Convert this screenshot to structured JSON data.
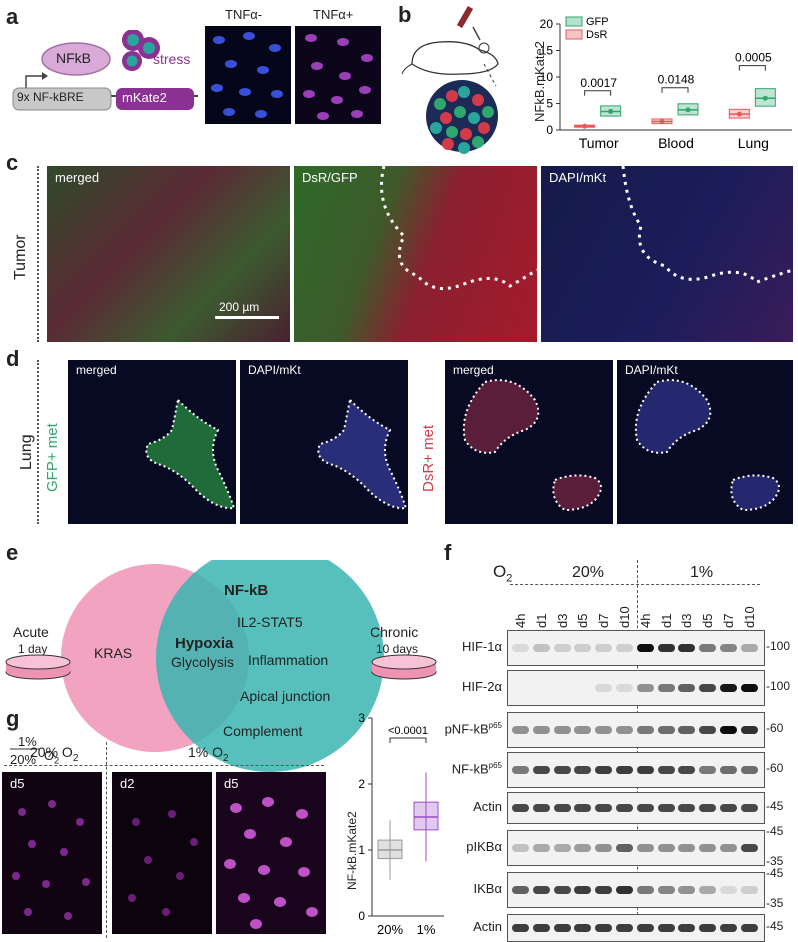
{
  "panels": {
    "a": "a",
    "b": "b",
    "c": "c",
    "d": "d",
    "e": "e",
    "f": "f",
    "g": "g"
  },
  "a": {
    "nfkb": "NFkB",
    "stress": "stress",
    "bre": "9x NF-kBRE",
    "reporter": "mKate2",
    "tnf_neg": "TNFα-",
    "tnf_pos": "TNFα+"
  },
  "b_chart": {
    "ylabel": "NFkB.mKate2",
    "chart_data": {
      "type": "box",
      "categories": [
        "Tumor",
        "Blood",
        "Lung"
      ],
      "ylim": [
        0,
        20
      ],
      "yticks": [
        0,
        5,
        10,
        15,
        20
      ],
      "series": [
        {
          "name": "GFP",
          "color": "#2fa66e",
          "medians": [
            3.5,
            3.8,
            6.0
          ]
        },
        {
          "name": "DsR",
          "color": "#e8585c",
          "medians": [
            0.7,
            1.6,
            3.0
          ]
        }
      ],
      "pvalues": [
        "0.0017",
        "0.0148",
        "0.0005"
      ]
    }
  },
  "c": {
    "row_label": "Tumor",
    "merged": "merged",
    "dsr_gfp": "DsR/GFP",
    "dapi": "DAPI/mKt",
    "scale": "200 µm"
  },
  "d": {
    "row_label": "Lung",
    "gfp_met": "GFP+ met",
    "dsr_met": "DsR+ met",
    "merged": "merged",
    "dapi": "DAPI/mKt"
  },
  "e": {
    "left_only": "KRAS",
    "overlap_bold": "Hypoxia",
    "overlap": "Glycolysis",
    "right_bold": "NF-kB",
    "right": [
      "IL2-STAT5",
      "Inflammation",
      "Apical junction",
      "Complement"
    ],
    "acute": "Acute",
    "acute_dur": "1 day",
    "chronic": "Chronic",
    "chronic_dur": "10 days",
    "frac_top": "1%",
    "frac_bot": "20%",
    "frac_o2": "O",
    "colors": {
      "acute": "#ef93b5",
      "chronic": "#3ab5b0"
    }
  },
  "f": {
    "o2": "O",
    "o2_sub": "2",
    "cond_a": "20%",
    "cond_b": "1%",
    "lanes": [
      "4h",
      "d1",
      "d3",
      "d5",
      "d7",
      "d10",
      "4h",
      "d1",
      "d3",
      "d5",
      "d7",
      "d10"
    ],
    "rows": [
      {
        "label": "HIF-1α",
        "mw": [
          "100"
        ]
      },
      {
        "label": "HIF-2α",
        "mw": [
          "100"
        ]
      },
      {
        "label": "pNF-kB",
        "sup": "p65",
        "mw": [
          "60"
        ]
      },
      {
        "label": "NF-kB",
        "sup": "p65",
        "mw": [
          "60"
        ]
      },
      {
        "label": "Actin",
        "mw": [
          "45"
        ]
      },
      {
        "label": "pIKBα",
        "mw": [
          "45",
          "35"
        ]
      },
      {
        "label": "IKBα",
        "mw": [
          "45",
          "35"
        ]
      },
      {
        "label": "Actin",
        "mw": [
          "45"
        ]
      }
    ]
  },
  "g": {
    "cond_20": "20% O",
    "cond_1": "1% O",
    "d5": "d5",
    "d2": "d2",
    "d5b": "d5",
    "ylabel": "NF-kB.mKate2",
    "chart_data": {
      "type": "box",
      "categories": [
        "20%",
        "1%"
      ],
      "ylim": [
        0,
        3
      ],
      "yticks": [
        0,
        1,
        2,
        3
      ],
      "medians": [
        1.0,
        1.5
      ],
      "colors": [
        "#999999",
        "#9a4fc4"
      ],
      "pvalue": "<0.0001"
    }
  }
}
